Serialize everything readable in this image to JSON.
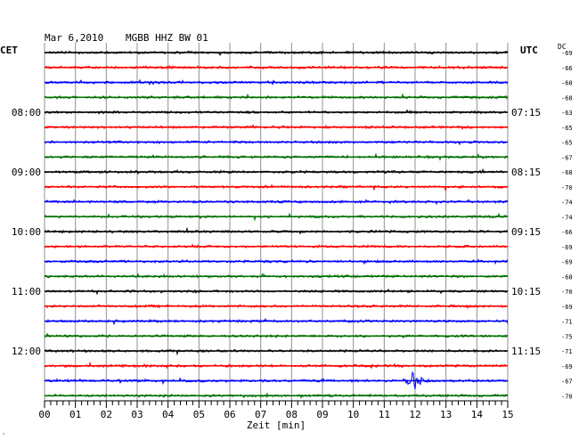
{
  "header": {
    "date": "Mar 6,2010",
    "station": "MGBB HHZ BW 01"
  },
  "axes": {
    "left_timezone": "CET",
    "right_timezone": "UTC",
    "dc_header": "DC",
    "x_label": "Zeit [min]",
    "x_ticks": [
      "00",
      "01",
      "02",
      "03",
      "04",
      "05",
      "06",
      "07",
      "08",
      "09",
      "10",
      "11",
      "12",
      "13",
      "14",
      "15"
    ],
    "x_range_min": [
      0,
      15
    ]
  },
  "colors": {
    "trace_cycle": [
      "#000000",
      "#ff0000",
      "#0000ff",
      "#007000"
    ],
    "grid": "#909090"
  },
  "chart_data": {
    "type": "line",
    "title": "Mar 6,2010   MGBB HHZ BW 01",
    "xlabel": "Zeit [min]",
    "x_range": [
      0,
      15
    ],
    "row_minutes": 15,
    "rows": 24,
    "left_hour_labels": [
      {
        "row": 4,
        "text": "08:00"
      },
      {
        "row": 8,
        "text": "09:00"
      },
      {
        "row": 12,
        "text": "10:00"
      },
      {
        "row": 16,
        "text": "11:00"
      },
      {
        "row": 20,
        "text": "12:00"
      }
    ],
    "right_hour_labels": [
      {
        "row": 4,
        "text": "07:15"
      },
      {
        "row": 8,
        "text": "08:15"
      },
      {
        "row": 12,
        "text": "09:15"
      },
      {
        "row": 16,
        "text": "10:15"
      },
      {
        "row": 20,
        "text": "11:15"
      }
    ],
    "dc_offsets": [
      "-69",
      "-66",
      "-68",
      "-68",
      "-63",
      "-65",
      "-65",
      "-67",
      "-68",
      "-70",
      "-74",
      "-74",
      "-66",
      "-69",
      "-69",
      "-68",
      "-70",
      "-69",
      "-71",
      "-75",
      "-71",
      "-69",
      "-67",
      "-70"
    ],
    "events": [
      {
        "row": 22,
        "start_min": 11.6,
        "peak_min": 11.95,
        "end_min": 12.6,
        "amplitude": "large"
      }
    ]
  }
}
